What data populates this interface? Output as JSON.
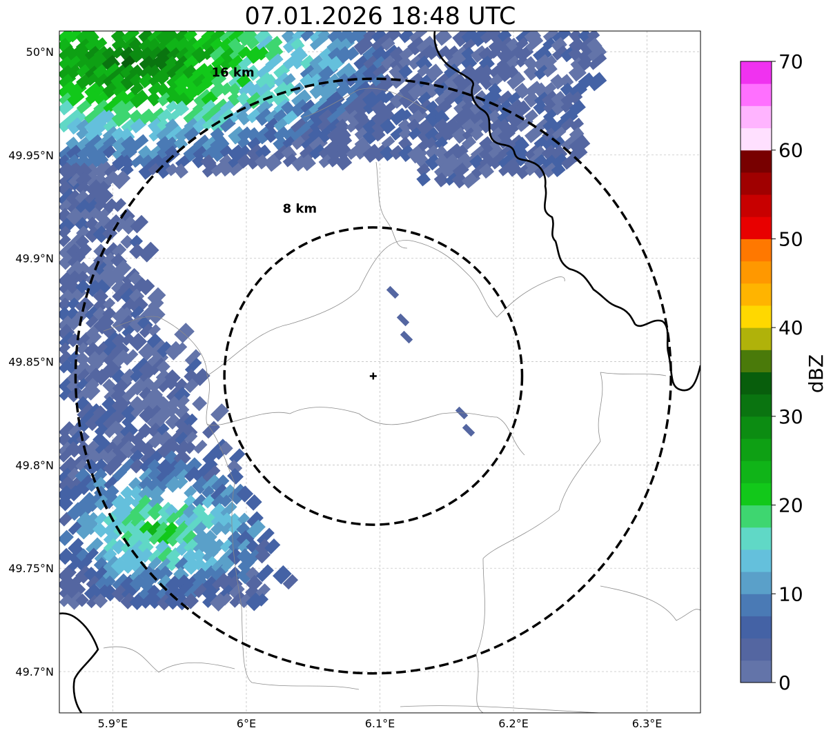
{
  "title": "07.01.2026 18:48 UTC",
  "map": {
    "lon_range": [
      5.86,
      6.34
    ],
    "lat_range": [
      49.68,
      50.01
    ],
    "x_ticks": [
      {
        "value": 5.9,
        "label": "5.9°E"
      },
      {
        "value": 6.0,
        "label": "6°E"
      },
      {
        "value": 6.1,
        "label": "6.1°E"
      },
      {
        "value": 6.2,
        "label": "6.2°E"
      },
      {
        "value": 6.3,
        "label": "6.3°E"
      }
    ],
    "y_ticks": [
      {
        "value": 50.0,
        "label": "50°N"
      },
      {
        "value": 49.95,
        "label": "49.95°N"
      },
      {
        "value": 49.9,
        "label": "49.9°N"
      },
      {
        "value": 49.85,
        "label": "49.85°N"
      },
      {
        "value": 49.8,
        "label": "49.8°N"
      },
      {
        "value": 49.75,
        "label": "49.75°N"
      },
      {
        "value": 49.7,
        "label": "49.7°N"
      }
    ],
    "grid": true,
    "center": {
      "lon": 6.095,
      "lat": 49.843
    },
    "rings": [
      {
        "radius_km": 8,
        "label": "8 km",
        "label_lon": 6.04,
        "label_lat": 49.922
      },
      {
        "radius_km": 16,
        "label": "16 km",
        "label_lon": 5.99,
        "label_lat": 49.988
      }
    ]
  },
  "colorbar": {
    "label": "dBZ",
    "min": 0,
    "max": 70,
    "tick_values": [
      0,
      10,
      20,
      30,
      40,
      50,
      60,
      70
    ],
    "colors": [
      "#6374a9",
      "#5466a1",
      "#4462a5",
      "#4a7ab5",
      "#5aa0c9",
      "#64c0dc",
      "#60d8c6",
      "#3ed670",
      "#12c81a",
      "#10b418",
      "#0ea014",
      "#0c8c12",
      "#0a7410",
      "#085e0c",
      "#4a7a0a",
      "#b0b20a",
      "#ffd800",
      "#ffb400",
      "#ff9800",
      "#ff7800",
      "#e80000",
      "#c80000",
      "#a00000",
      "#780000",
      "#ffe0ff",
      "#ffb4ff",
      "#ff70ff",
      "#f032f0"
    ]
  }
}
